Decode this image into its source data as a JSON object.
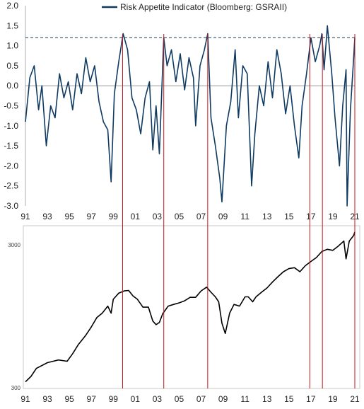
{
  "colors": {
    "indicator": "#0f3a62",
    "index": "#000000",
    "marker": "#c0171d",
    "threshold": "#1f3a55",
    "zero": "#8a8a8a",
    "frame": "#bdbdbd"
  },
  "chart_data": [
    {
      "type": "line",
      "title": "",
      "legend": {
        "entries": [
          "Risk Appetite Indicator (Bloomberg: GSRAII)"
        ],
        "placement": "top-center"
      },
      "series": [
        {
          "name": "Risk Appetite Indicator (Bloomberg: GSRAII)",
          "x": [
            1991.0,
            1991.4,
            1991.8,
            1992.2,
            1992.5,
            1992.9,
            1993.3,
            1993.7,
            1994.1,
            1994.5,
            1994.9,
            1995.3,
            1995.7,
            1996.1,
            1996.5,
            1996.9,
            1997.3,
            1997.7,
            1998.1,
            1998.5,
            1998.8,
            1999.1,
            1999.5,
            1999.9,
            2000.3,
            2000.7,
            2001.1,
            2001.5,
            2001.9,
            2002.3,
            2002.6,
            2002.9,
            2003.2,
            2003.6,
            2003.9,
            2004.3,
            2004.7,
            2005.1,
            2005.5,
            2005.9,
            2006.3,
            2006.5,
            2006.9,
            2007.3,
            2007.6,
            2007.9,
            2008.3,
            2008.7,
            2008.9,
            2009.3,
            2009.7,
            2010.1,
            2010.4,
            2010.8,
            2011.2,
            2011.6,
            2011.9,
            2012.3,
            2012.7,
            2013.1,
            2013.5,
            2013.9,
            2014.3,
            2014.7,
            2015.1,
            2015.5,
            2015.9,
            2016.2,
            2016.6,
            2017.0,
            2017.4,
            2017.8,
            2018.0,
            2018.2,
            2018.5,
            2018.9,
            2019.2,
            2019.6,
            2019.9,
            2020.2,
            2020.3,
            2020.6,
            2020.9,
            2021.0
          ],
          "values": [
            -0.9,
            0.2,
            0.5,
            -0.6,
            0.0,
            -1.5,
            -0.5,
            -0.8,
            0.3,
            -0.3,
            0.1,
            -0.6,
            0.3,
            -0.2,
            0.7,
            0.1,
            0.5,
            -0.4,
            -0.9,
            -1.1,
            -2.4,
            -0.2,
            0.6,
            1.3,
            0.9,
            -0.3,
            -0.6,
            -1.2,
            -0.3,
            0.1,
            -1.6,
            -0.5,
            -1.7,
            1.2,
            0.5,
            0.9,
            0.1,
            0.8,
            -0.1,
            0.7,
            0.2,
            -1.0,
            0.5,
            0.9,
            1.3,
            -0.8,
            -1.5,
            -2.3,
            -2.9,
            -1.0,
            -0.4,
            0.9,
            -0.8,
            0.5,
            0.3,
            -2.5,
            -1.2,
            0.0,
            -0.5,
            0.6,
            -0.3,
            0.9,
            0.3,
            -0.7,
            0.0,
            -1.0,
            -1.8,
            -0.5,
            0.3,
            1.2,
            0.6,
            1.0,
            1.3,
            0.4,
            1.5,
            0.3,
            -0.8,
            -2.0,
            -0.5,
            0.4,
            -3.0,
            -0.6,
            0.7,
            1.2
          ]
        }
      ],
      "threshold": 1.2,
      "xlim": [
        1991,
        2021
      ],
      "ylim": [
        -3.0,
        2.0
      ],
      "x_tick_labels": [
        "91",
        "93",
        "95",
        "97",
        "99",
        "01",
        "03",
        "05",
        "07",
        "09",
        "11",
        "13",
        "15",
        "17",
        "19",
        "21"
      ],
      "y_tick_labels": [
        "2.0",
        "1.5",
        "1.0",
        "0.5",
        "0.0",
        "-0.5",
        "-1.0",
        "-1.5",
        "-2.0",
        "-2.5",
        "-3.0"
      ],
      "grid": false
    },
    {
      "type": "line",
      "title": "",
      "log_scale": true,
      "series": [
        {
          "x": [
            1991.0,
            1991.5,
            1992.0,
            1993.0,
            1994.0,
            1994.8,
            1995.3,
            1995.8,
            1996.5,
            1997.0,
            1997.5,
            1998.0,
            1998.5,
            1998.8,
            1999.0,
            1999.5,
            2000.0,
            2000.4,
            2000.8,
            2001.2,
            2001.7,
            2002.2,
            2002.6,
            2002.9,
            2003.2,
            2003.5,
            2004.0,
            2004.5,
            2005.0,
            2005.5,
            2006.0,
            2006.5,
            2007.0,
            2007.5,
            2007.9,
            2008.3,
            2008.6,
            2008.9,
            2009.2,
            2009.6,
            2010.0,
            2010.5,
            2011.0,
            2011.3,
            2011.7,
            2012.0,
            2012.5,
            2013.0,
            2013.5,
            2014.0,
            2014.5,
            2015.0,
            2015.5,
            2016.0,
            2016.5,
            2017.0,
            2017.5,
            2018.0,
            2018.5,
            2019.0,
            2019.5,
            2020.0,
            2020.2,
            2020.5,
            2020.9,
            2021.0
          ],
          "values": [
            330,
            360,
            410,
            450,
            470,
            460,
            520,
            600,
            700,
            800,
            930,
            1000,
            1120,
            1000,
            1250,
            1380,
            1430,
            1440,
            1320,
            1250,
            1100,
            1100,
            880,
            830,
            860,
            990,
            1120,
            1150,
            1180,
            1220,
            1290,
            1290,
            1430,
            1520,
            1400,
            1300,
            1200,
            850,
            720,
            1000,
            1150,
            1120,
            1300,
            1300,
            1200,
            1300,
            1400,
            1500,
            1650,
            1800,
            1950,
            2050,
            2080,
            1950,
            2150,
            2300,
            2450,
            2700,
            2800,
            2750,
            2950,
            3200,
            2400,
            3200,
            3500,
            3700
          ]
        }
      ],
      "xlim": [
        1991,
        2021
      ],
      "ylim": [
        300,
        4000
      ],
      "x_tick_labels": [
        "91",
        "93",
        "95",
        "97",
        "99",
        "01",
        "03",
        "05",
        "07",
        "09",
        "11",
        "13",
        "15",
        "17",
        "19",
        "21"
      ],
      "y_tick_labels": [
        "3000",
        "300"
      ],
      "y_tick_values": [
        3000,
        300
      ],
      "grid": false
    }
  ],
  "markers": {
    "x": [
      1999.85,
      2003.6,
      2007.6,
      2016.9,
      2018.05,
      2021.0
    ]
  }
}
